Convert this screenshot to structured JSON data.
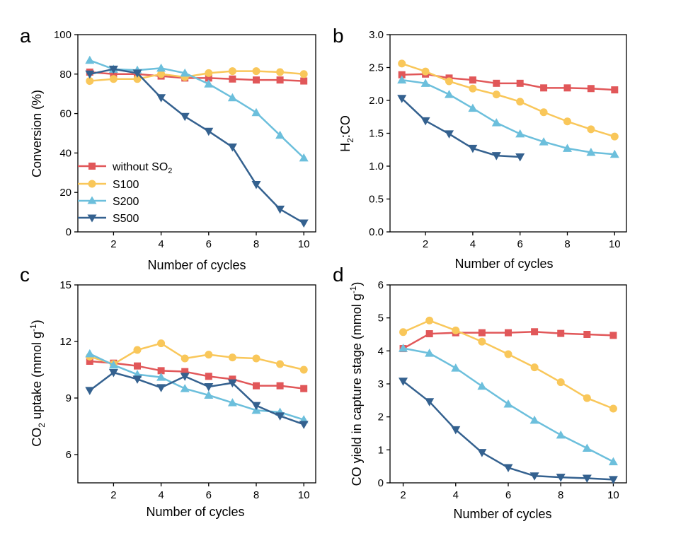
{
  "figure": {
    "colors": {
      "without SO2": "#e15759",
      "S100": "#f9c75a",
      "S200": "#6cbfdc",
      "S500": "#34618f"
    },
    "legend_labels": [
      "without SO",
      "S100",
      "S200",
      "S500"
    ],
    "legend_sub": "2"
  },
  "chart_data": [
    {
      "id": "a",
      "panel_label": "a",
      "type": "line",
      "xlabel": "Number of cycles",
      "ylabel": "Conversion (%)",
      "xlim": [
        0.5,
        10.5
      ],
      "ylim": [
        0,
        100
      ],
      "xticks": [
        2,
        4,
        6,
        8,
        10
      ],
      "yticks": [
        0,
        20,
        40,
        60,
        80,
        100
      ],
      "ytick_labels": [
        "0",
        "20",
        "40",
        "60",
        "80",
        "100"
      ],
      "legend": "bottom-left",
      "series": [
        {
          "name": "without SO2",
          "marker": "square",
          "x": [
            1,
            2,
            3,
            4,
            5,
            6,
            7,
            8,
            9,
            10
          ],
          "y": [
            81,
            80,
            80,
            79,
            78,
            78,
            77.5,
            77,
            77,
            76.5
          ]
        },
        {
          "name": "S100",
          "marker": "circle",
          "x": [
            1,
            2,
            3,
            4,
            5,
            6,
            7,
            8,
            9,
            10
          ],
          "y": [
            76.5,
            77.5,
            77.5,
            80,
            78.5,
            80.5,
            81.5,
            81.5,
            81,
            80
          ]
        },
        {
          "name": "S200",
          "marker": "triangle-up",
          "x": [
            1,
            2,
            3,
            4,
            5,
            6,
            7,
            8,
            9,
            10
          ],
          "y": [
            87,
            82.5,
            82,
            83,
            80.5,
            75,
            68,
            60.5,
            49,
            37.5
          ]
        },
        {
          "name": "S500",
          "marker": "triangle-down",
          "x": [
            1,
            2,
            3,
            4,
            5,
            6,
            7,
            8,
            9,
            10
          ],
          "y": [
            80,
            82.5,
            80.5,
            68,
            58.5,
            51,
            43,
            24,
            11.5,
            4.5
          ]
        }
      ]
    },
    {
      "id": "b",
      "panel_label": "b",
      "type": "line",
      "xlabel": "Number of cycles",
      "ylabel": "H:CO",
      "ylabel_sub": "2",
      "xlim": [
        0.5,
        10.5
      ],
      "ylim": [
        0,
        3
      ],
      "xticks": [
        2,
        4,
        6,
        8,
        10
      ],
      "yticks": [
        0,
        0.5,
        1,
        1.5,
        2,
        2.5,
        3
      ],
      "ytick_labels": [
        "0.0",
        "0.5",
        "1.0",
        "1.5",
        "2.0",
        "2.5",
        "3.0"
      ],
      "series": [
        {
          "name": "without SO2",
          "marker": "square",
          "x": [
            1,
            2,
            3,
            4,
            5,
            6,
            7,
            8,
            9,
            10
          ],
          "y": [
            2.39,
            2.4,
            2.34,
            2.31,
            2.26,
            2.26,
            2.19,
            2.19,
            2.18,
            2.16
          ]
        },
        {
          "name": "S100",
          "marker": "circle",
          "x": [
            1,
            2,
            3,
            4,
            5,
            6,
            7,
            8,
            9,
            10
          ],
          "y": [
            2.56,
            2.44,
            2.29,
            2.18,
            2.09,
            1.98,
            1.82,
            1.68,
            1.56,
            1.45
          ]
        },
        {
          "name": "S200",
          "marker": "triangle-up",
          "x": [
            1,
            2,
            3,
            4,
            5,
            6,
            7,
            8,
            9,
            10
          ],
          "y": [
            2.31,
            2.26,
            2.09,
            1.88,
            1.66,
            1.49,
            1.37,
            1.27,
            1.21,
            1.18
          ]
        },
        {
          "name": "S500",
          "marker": "triangle-down",
          "x": [
            1,
            2,
            3,
            4,
            5,
            6
          ],
          "y": [
            2.03,
            1.69,
            1.49,
            1.27,
            1.16,
            1.14
          ]
        }
      ]
    },
    {
      "id": "c",
      "panel_label": "c",
      "type": "line",
      "xlabel": "Number of cycles",
      "ylabel_pre": "CO",
      "ylabel_sub": "2",
      "ylabel_post": " uptake (mmol g",
      "ylabel_sup": "-1",
      "ylabel_end": ")",
      "xlim": [
        0.5,
        10.5
      ],
      "ylim": [
        4.5,
        15
      ],
      "xticks": [
        2,
        4,
        6,
        8,
        10
      ],
      "yticks": [
        6,
        9,
        12,
        15
      ],
      "ytick_labels": [
        "6",
        "9",
        "12",
        "15"
      ],
      "series": [
        {
          "name": "without SO2",
          "marker": "square",
          "x": [
            1,
            2,
            3,
            4,
            5,
            6,
            7,
            8,
            9,
            10
          ],
          "y": [
            10.95,
            10.85,
            10.7,
            10.45,
            10.4,
            10.15,
            10.0,
            9.65,
            9.65,
            9.5
          ]
        },
        {
          "name": "S100",
          "marker": "circle",
          "x": [
            1,
            2,
            3,
            4,
            5,
            6,
            7,
            8,
            9,
            10
          ],
          "y": [
            11.2,
            10.8,
            11.55,
            11.9,
            11.1,
            11.3,
            11.15,
            11.1,
            10.8,
            10.5
          ]
        },
        {
          "name": "S200",
          "marker": "triangle-up",
          "x": [
            1,
            2,
            3,
            4,
            5,
            6,
            7,
            8,
            9,
            10
          ],
          "y": [
            11.35,
            10.75,
            10.25,
            10.1,
            9.5,
            9.15,
            8.75,
            8.35,
            8.25,
            7.85
          ]
        },
        {
          "name": "S500",
          "marker": "triangle-down",
          "x": [
            1,
            2,
            3,
            4,
            5,
            6,
            7,
            8,
            9,
            10
          ],
          "y": [
            9.4,
            10.35,
            10.0,
            9.55,
            10.15,
            9.6,
            9.8,
            8.6,
            8.05,
            7.6
          ]
        }
      ]
    },
    {
      "id": "d",
      "panel_label": "d",
      "type": "line",
      "xlabel": "Number of cycles",
      "ylabel_pre": "CO yield in capture stage (mmol g",
      "ylabel_sup": "-1",
      "ylabel_end": ")",
      "xlim": [
        1.5,
        10.5
      ],
      "ylim": [
        0,
        6
      ],
      "xticks": [
        2,
        4,
        6,
        8,
        10
      ],
      "yticks": [
        0,
        1,
        2,
        3,
        4,
        5,
        6
      ],
      "ytick_labels": [
        "0",
        "1",
        "2",
        "3",
        "4",
        "5",
        "6"
      ],
      "series": [
        {
          "name": "without SO2",
          "marker": "square",
          "x": [
            2,
            3,
            4,
            5,
            6,
            7,
            8,
            9,
            10
          ],
          "y": [
            4.07,
            4.52,
            4.55,
            4.55,
            4.55,
            4.58,
            4.53,
            4.5,
            4.47
          ]
        },
        {
          "name": "S100",
          "marker": "circle",
          "x": [
            2,
            3,
            4,
            5,
            6,
            7,
            8,
            9,
            10
          ],
          "y": [
            4.57,
            4.92,
            4.62,
            4.28,
            3.9,
            3.5,
            3.05,
            2.57,
            2.25
          ]
        },
        {
          "name": "S200",
          "marker": "triangle-up",
          "x": [
            2,
            3,
            4,
            5,
            6,
            7,
            8,
            9,
            10
          ],
          "y": [
            4.08,
            3.93,
            3.48,
            2.93,
            2.39,
            1.9,
            1.45,
            1.05,
            0.64
          ]
        },
        {
          "name": "S500",
          "marker": "triangle-down",
          "x": [
            2,
            3,
            4,
            5,
            6,
            7,
            8,
            9,
            10
          ],
          "y": [
            3.08,
            2.46,
            1.61,
            0.92,
            0.46,
            0.21,
            0.17,
            0.14,
            0.1
          ]
        }
      ]
    }
  ]
}
